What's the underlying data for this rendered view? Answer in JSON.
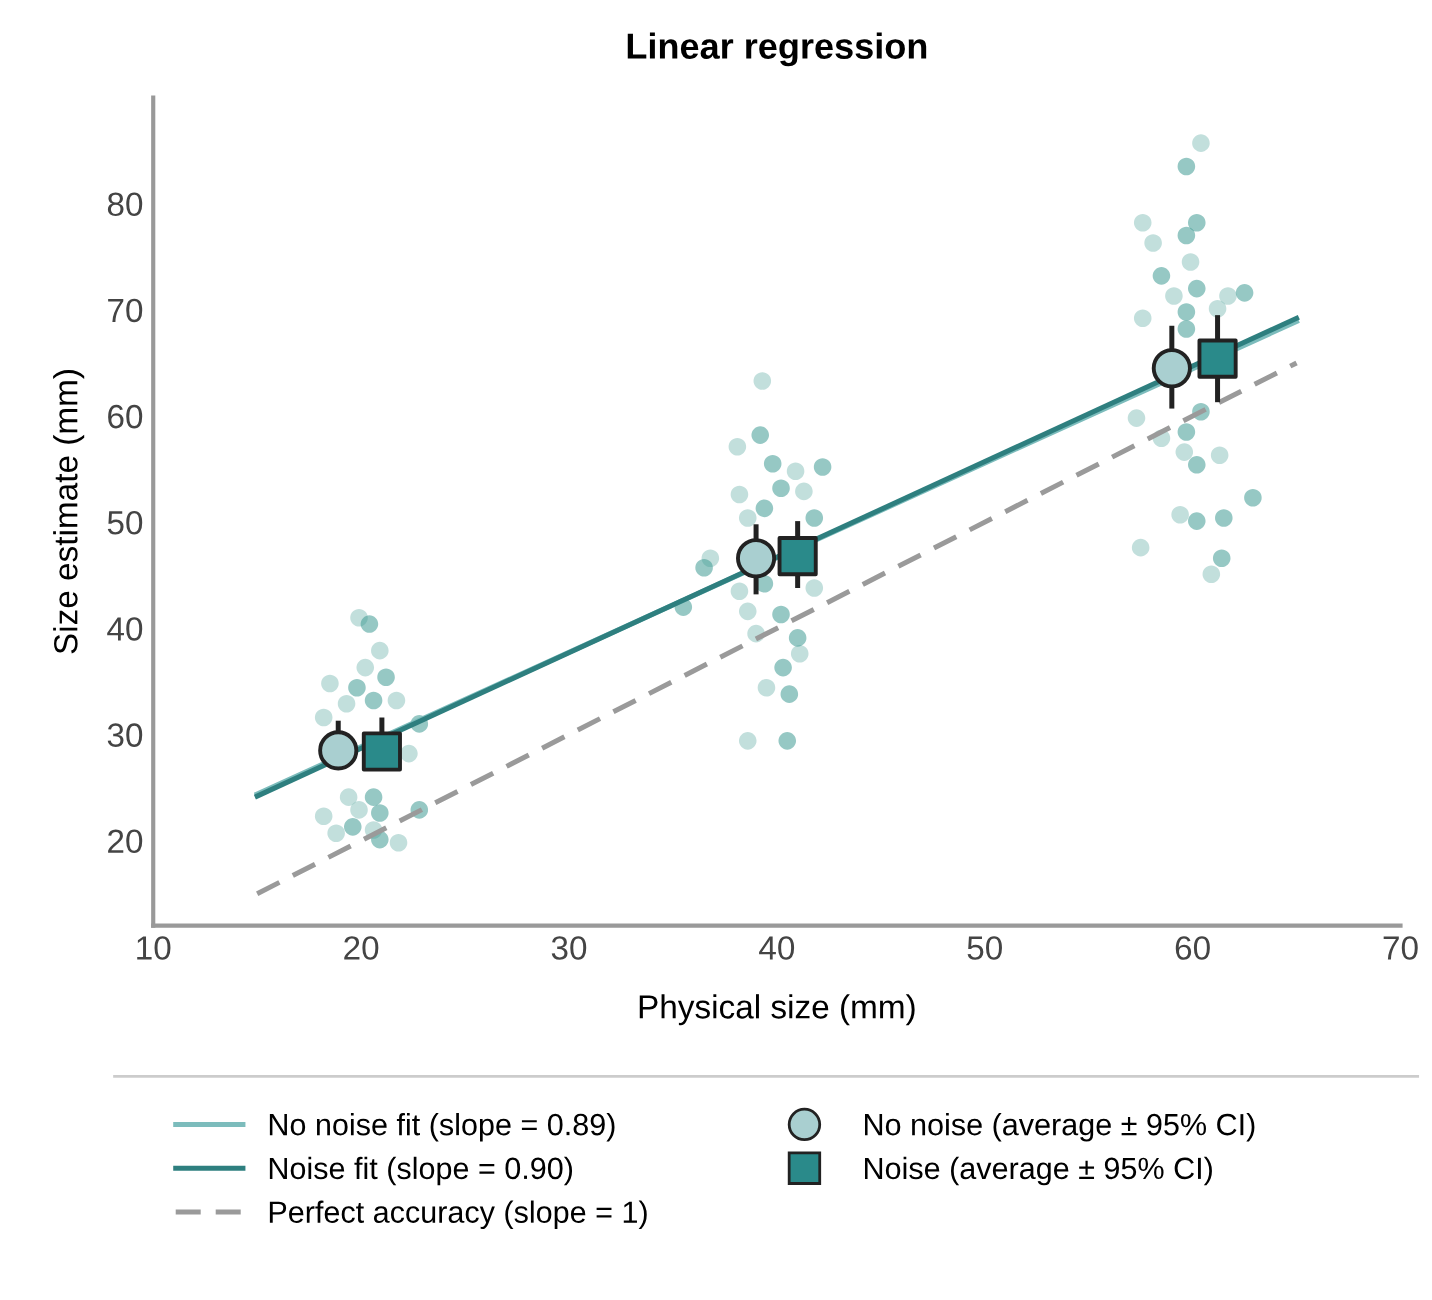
{
  "chart_data": {
    "type": "scatter",
    "title": "Linear regression",
    "xlabel": "Physical size (mm)",
    "ylabel": "Size estimate (mm)",
    "xlim": [
      10,
      70
    ],
    "xticks": [
      10,
      20,
      30,
      40,
      50,
      60,
      70
    ],
    "ylim": [
      12,
      90
    ],
    "yticks": [
      20,
      30,
      40,
      50,
      60,
      70,
      80
    ],
    "grid": false,
    "legend": "bottom",
    "series": [
      {
        "marker": "circle",
        "color": "#8fc4c0",
        "x": [
          19.9,
          20.9,
          20.2,
          18.5,
          19.3,
          21.7,
          18.2,
          22.3,
          19.4,
          19.9,
          18.2,
          20.6,
          18.8,
          21.8,
          39.3,
          38.1,
          40.9,
          38.2,
          41.3,
          38.6,
          36.8,
          38.2,
          41.8,
          38.6,
          39.0,
          41.1,
          39.5,
          38.6,
          60.4,
          57.6,
          58.1,
          59.9,
          59.1,
          61.7,
          57.6,
          61.2,
          57.3,
          58.5,
          59.6,
          61.3,
          59.4,
          57.5,
          60.9
        ],
        "values": [
          41.0,
          37.9,
          36.3,
          34.8,
          32.9,
          33.2,
          31.6,
          28.2,
          24.1,
          22.9,
          22.3,
          21.0,
          20.7,
          19.8,
          63.3,
          57.1,
          54.8,
          52.6,
          52.9,
          50.4,
          46.6,
          43.5,
          43.8,
          41.6,
          39.5,
          37.6,
          34.4,
          29.4,
          85.7,
          78.2,
          76.3,
          74.5,
          71.3,
          71.3,
          69.2,
          70.1,
          59.8,
          57.9,
          56.6,
          56.3,
          50.7,
          47.6,
          45.1
        ]
      },
      {
        "marker": "circle",
        "color": "#3f9a94",
        "x": [
          20.4,
          21.2,
          19.8,
          20.6,
          22.8,
          20.6,
          20.9,
          19.6,
          20.9,
          22.8,
          39.2,
          39.8,
          42.2,
          40.2,
          39.4,
          41.8,
          36.5,
          39.4,
          35.5,
          40.2,
          41.0,
          40.3,
          40.6,
          40.5,
          59.7,
          60.2,
          59.7,
          58.5,
          60.2,
          62.5,
          59.7,
          59.7,
          60.4,
          59.7,
          60.2,
          62.9,
          60.2,
          61.5,
          61.4
        ],
        "values": [
          40.4,
          35.4,
          34.4,
          33.2,
          31.0,
          24.1,
          22.6,
          21.3,
          20.1,
          22.9,
          58.2,
          55.5,
          55.2,
          53.2,
          51.3,
          50.4,
          45.7,
          44.2,
          42.0,
          41.3,
          39.1,
          36.3,
          33.8,
          29.4,
          83.5,
          78.2,
          77.0,
          73.2,
          72.0,
          71.6,
          69.8,
          68.2,
          60.4,
          58.5,
          55.4,
          52.3,
          50.1,
          50.4,
          46.6
        ]
      },
      {
        "type": "line",
        "name": "No noise fit (slope = 0.89)",
        "color": "#7cbcbc",
        "line_style": "solid",
        "x": [
          15,
          65
        ],
        "values": [
          24.4,
          68.9
        ]
      },
      {
        "type": "line",
        "name": "Noise fit (slope = 0.90)",
        "color": "#2e7f7f",
        "line_style": "solid",
        "x": [
          15,
          65
        ],
        "values": [
          24.2,
          69.2
        ]
      },
      {
        "type": "line",
        "name": "Perfect accuracy (slope = 1)",
        "color": "#9a9a9a",
        "line_style": "dashed",
        "x": [
          15,
          65
        ],
        "values": [
          15,
          65
        ]
      },
      {
        "type": "scatter",
        "name": "No noise (average ± 95% CI)",
        "marker": "circle",
        "color": "#a9cfd0",
        "x": [
          18.9,
          39.0,
          59.0
        ],
        "values": [
          28.5,
          46.6,
          64.5
        ],
        "errors": [
          [
            26.9,
            31.3
          ],
          [
            43.2,
            49.8
          ],
          [
            60.7,
            68.5
          ]
        ]
      },
      {
        "type": "scatter",
        "name": "Noise (average ± 95% CI)",
        "marker": "square",
        "color": "#2a8a8a",
        "x": [
          21.0,
          41.0,
          61.2
        ],
        "values": [
          28.4,
          46.8,
          65.4
        ],
        "errors": [
          [
            26.9,
            31.6
          ],
          [
            43.8,
            50.1
          ],
          [
            61.3,
            69.5
          ]
        ]
      }
    ]
  }
}
